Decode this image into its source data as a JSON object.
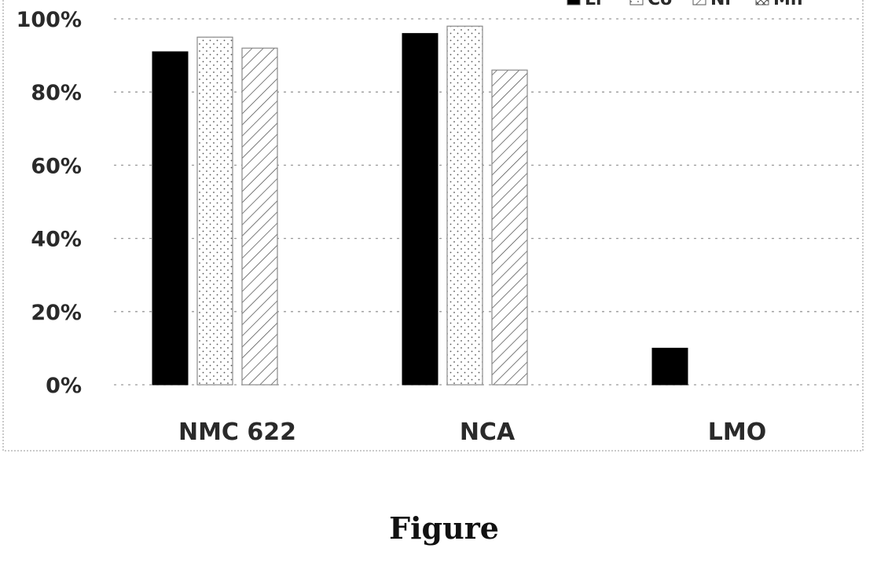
{
  "caption": "Figure",
  "colors": {
    "Li": "#000000",
    "Co": "#ffffff",
    "Ni": "#ffffff",
    "Mn": "#ffffff",
    "grid": "#9a9a9a",
    "border": "#b0b0b0"
  },
  "chart_data": {
    "type": "bar",
    "categories": [
      "NMC 622",
      "NCA",
      "LMO"
    ],
    "series": [
      {
        "name": "Li",
        "values": [
          0.91,
          0.96,
          0.1
        ]
      },
      {
        "name": "Co",
        "values": [
          0.95,
          0.98,
          null
        ]
      },
      {
        "name": "Ni",
        "values": [
          0.92,
          0.86,
          null
        ]
      }
    ],
    "extra_legend_entries": [
      "Mn"
    ],
    "y_ticks": [
      "0%",
      "20%",
      "40%",
      "60%",
      "80%",
      "100%"
    ],
    "ylim": [
      0,
      1
    ],
    "grid": true,
    "legend_position": "top-right",
    "title": "",
    "xlabel": "",
    "ylabel": ""
  }
}
